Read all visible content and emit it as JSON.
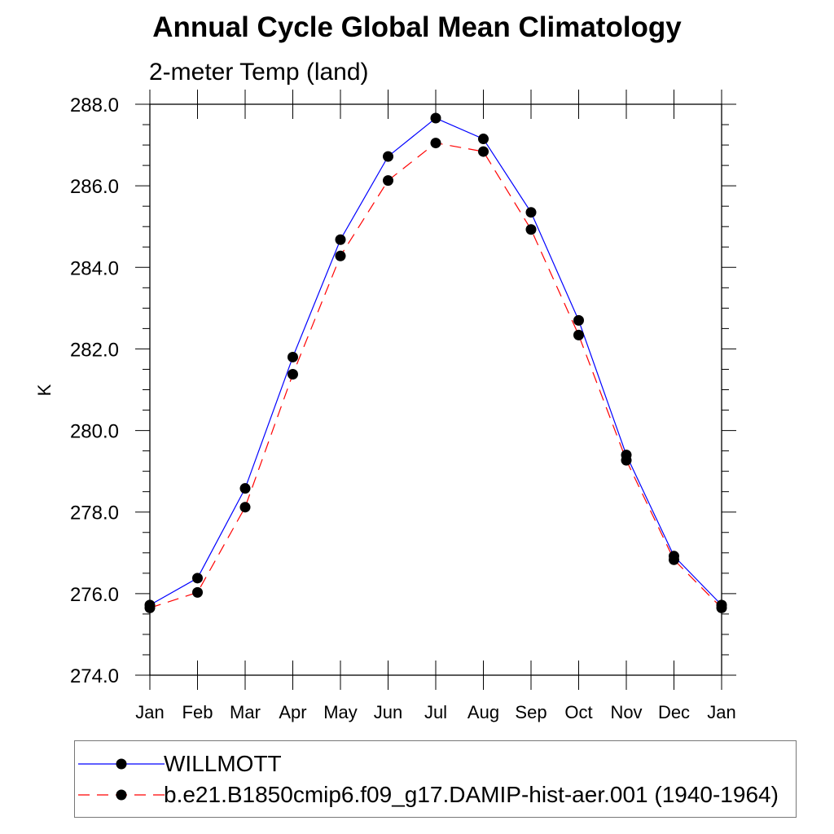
{
  "chart_data": {
    "type": "line",
    "title": "Annual Cycle Global Mean Climatology",
    "subtitle": "2-meter Temp (land)",
    "xlabel": "",
    "ylabel": "K",
    "ylim": [
      274.0,
      288.0
    ],
    "yticks": [
      "274.0",
      "276.0",
      "278.0",
      "280.0",
      "282.0",
      "284.0",
      "286.0",
      "288.0"
    ],
    "ytick_values": [
      274,
      276,
      278,
      280,
      282,
      284,
      286,
      288
    ],
    "categories": [
      "Jan",
      "Feb",
      "Mar",
      "Apr",
      "May",
      "Jun",
      "Jul",
      "Aug",
      "Sep",
      "Oct",
      "Nov",
      "Dec",
      "Jan"
    ],
    "series": [
      {
        "name": "WILLMOTT",
        "color": "#0000ff",
        "dash": "solid",
        "values": [
          275.72,
          276.38,
          278.58,
          281.8,
          284.68,
          286.72,
          287.66,
          287.15,
          285.35,
          282.7,
          279.4,
          276.92,
          275.72
        ]
      },
      {
        "name": "b.e21.B1850cmip6.f09_g17.DAMIP-hist-aer.001 (1940-1964)",
        "color": "#ff0000",
        "dash": "dashed",
        "values": [
          275.65,
          276.03,
          278.12,
          281.38,
          284.28,
          286.13,
          287.05,
          286.84,
          284.93,
          282.34,
          279.27,
          276.83,
          275.65
        ]
      }
    ],
    "legend_position": "bottom"
  }
}
